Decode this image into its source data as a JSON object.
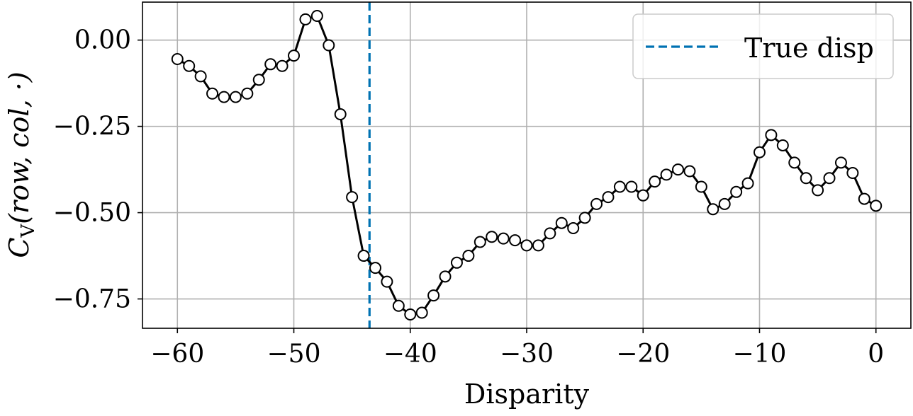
{
  "chart_data": {
    "type": "line",
    "title": "",
    "xlabel": "Disparity",
    "ylabel": "C_V(row, col, ·)",
    "xlim": [
      -63,
      3
    ],
    "ylim": [
      -0.835,
      0.11
    ],
    "xticks": [
      -60,
      -50,
      -40,
      -30,
      -20,
      -10,
      0
    ],
    "xtick_labels": [
      "−60",
      "−50",
      "−40",
      "−30",
      "−20",
      "−10",
      "0"
    ],
    "yticks": [
      0.0,
      -0.25,
      -0.5,
      -0.75
    ],
    "ytick_labels": [
      "0.00",
      "−0.25",
      "−0.50",
      "−0.75"
    ],
    "grid": true,
    "legend_position": "top-right",
    "series": [
      {
        "style": "solid-black-with-open-circle-markers",
        "x": [
          -60,
          -59,
          -58,
          -57,
          -56,
          -55,
          -54,
          -53,
          -52,
          -51,
          -50,
          -49,
          -48,
          -47,
          -46,
          -45,
          -44,
          -43,
          -42,
          -41,
          -40,
          -39,
          -38,
          -37,
          -36,
          -35,
          -34,
          -33,
          -32,
          -31,
          -30,
          -29,
          -28,
          -27,
          -26,
          -25,
          -24,
          -23,
          -22,
          -21,
          -20,
          -19,
          -18,
          -17,
          -16,
          -15,
          -14,
          -13,
          -12,
          -11,
          -10,
          -9,
          -8,
          -7,
          -6,
          -5,
          -4,
          -3,
          -2,
          -1,
          0
        ],
        "y": [
          -0.055,
          -0.075,
          -0.105,
          -0.155,
          -0.165,
          -0.165,
          -0.155,
          -0.115,
          -0.07,
          -0.075,
          -0.045,
          0.06,
          0.07,
          -0.015,
          -0.215,
          -0.455,
          -0.625,
          -0.66,
          -0.7,
          -0.77,
          -0.795,
          -0.79,
          -0.74,
          -0.685,
          -0.645,
          -0.625,
          -0.585,
          -0.57,
          -0.575,
          -0.58,
          -0.595,
          -0.595,
          -0.56,
          -0.53,
          -0.545,
          -0.515,
          -0.475,
          -0.455,
          -0.425,
          -0.425,
          -0.45,
          -0.41,
          -0.39,
          -0.375,
          -0.38,
          -0.425,
          -0.49,
          -0.475,
          -0.44,
          -0.415,
          -0.325,
          -0.275,
          -0.305,
          -0.355,
          -0.4,
          -0.435,
          -0.4,
          -0.355,
          -0.385,
          -0.46,
          -0.48
        ]
      }
    ],
    "vlines": [
      {
        "name": "True disp",
        "x": -43.5,
        "style": "dashed",
        "color": "#0072b2"
      }
    ],
    "colors": {
      "line": "#000000",
      "marker_face": "#ffffff",
      "grid": "#b0b0b0",
      "true_disp": "#0072b2"
    }
  }
}
